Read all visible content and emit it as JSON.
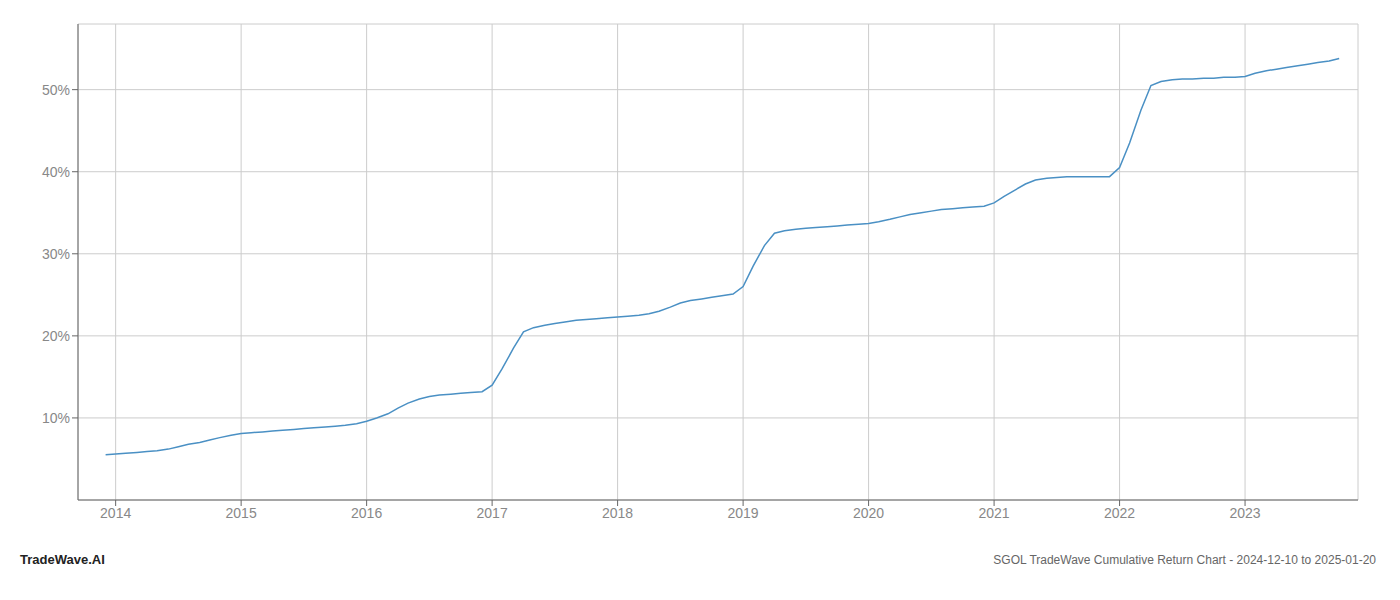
{
  "chart_data": {
    "type": "line",
    "title": "SGOL TradeWave Cumulative Return Chart - 2024-12-10 to 2025-01-20",
    "annotations": [
      "TradeWave.AI"
    ],
    "color": "#4a90c4",
    "grid": true,
    "xlim": [
      2013.7,
      2023.9
    ],
    "xticks": [
      2014,
      2015,
      2016,
      2017,
      2018,
      2019,
      2020,
      2021,
      2022,
      2023
    ],
    "ylim": [
      0,
      58
    ],
    "yticks": [
      {
        "value": 10,
        "label": "10%"
      },
      {
        "value": 20,
        "label": "20%"
      },
      {
        "value": 30,
        "label": "30%"
      },
      {
        "value": 40,
        "label": "40%"
      },
      {
        "value": 50,
        "label": "50%"
      }
    ],
    "x": [
      2013.92,
      2014.0,
      2014.08,
      2014.17,
      2014.25,
      2014.33,
      2014.42,
      2014.5,
      2014.58,
      2014.67,
      2014.75,
      2014.83,
      2014.92,
      2015.0,
      2015.08,
      2015.17,
      2015.25,
      2015.33,
      2015.42,
      2015.5,
      2015.58,
      2015.67,
      2015.75,
      2015.83,
      2015.92,
      2016.0,
      2016.08,
      2016.17,
      2016.25,
      2016.33,
      2016.42,
      2016.5,
      2016.58,
      2016.67,
      2016.75,
      2016.83,
      2016.92,
      2017.0,
      2017.08,
      2017.17,
      2017.25,
      2017.33,
      2017.42,
      2017.5,
      2017.58,
      2017.67,
      2017.75,
      2017.83,
      2017.92,
      2018.0,
      2018.08,
      2018.17,
      2018.25,
      2018.33,
      2018.42,
      2018.5,
      2018.58,
      2018.67,
      2018.75,
      2018.83,
      2018.92,
      2019.0,
      2019.08,
      2019.17,
      2019.25,
      2019.33,
      2019.42,
      2019.5,
      2019.58,
      2019.67,
      2019.75,
      2019.83,
      2019.92,
      2020.0,
      2020.08,
      2020.17,
      2020.25,
      2020.33,
      2020.42,
      2020.5,
      2020.58,
      2020.67,
      2020.75,
      2020.83,
      2020.92,
      2021.0,
      2021.08,
      2021.17,
      2021.25,
      2021.33,
      2021.42,
      2021.5,
      2021.58,
      2021.67,
      2021.75,
      2021.83,
      2021.92,
      2022.0,
      2022.08,
      2022.17,
      2022.25,
      2022.33,
      2022.42,
      2022.5,
      2022.58,
      2022.67,
      2022.75,
      2022.83,
      2022.92,
      2023.0,
      2023.08,
      2023.17,
      2023.25,
      2023.33,
      2023.42,
      2023.5,
      2023.58,
      2023.67,
      2023.75
    ],
    "values": [
      5.5,
      5.6,
      5.7,
      5.8,
      5.9,
      6.0,
      6.2,
      6.5,
      6.8,
      7.0,
      7.3,
      7.6,
      7.9,
      8.1,
      8.2,
      8.3,
      8.4,
      8.5,
      8.6,
      8.7,
      8.8,
      8.9,
      9.0,
      9.1,
      9.3,
      9.6,
      10.0,
      10.5,
      11.2,
      11.8,
      12.3,
      12.6,
      12.8,
      12.9,
      13.0,
      13.1,
      13.2,
      14.0,
      16.0,
      18.5,
      20.5,
      21.0,
      21.3,
      21.5,
      21.7,
      21.9,
      22.0,
      22.1,
      22.2,
      22.3,
      22.4,
      22.5,
      22.7,
      23.0,
      23.5,
      24.0,
      24.3,
      24.5,
      24.7,
      24.9,
      25.1,
      26.0,
      28.5,
      31.0,
      32.5,
      32.8,
      33.0,
      33.1,
      33.2,
      33.3,
      33.4,
      33.5,
      33.6,
      33.7,
      33.9,
      34.2,
      34.5,
      34.8,
      35.0,
      35.2,
      35.4,
      35.5,
      35.6,
      35.7,
      35.8,
      36.2,
      37.0,
      37.8,
      38.5,
      39.0,
      39.2,
      39.3,
      39.4,
      39.4,
      39.4,
      39.4,
      39.4,
      40.5,
      43.5,
      47.5,
      50.5,
      51.0,
      51.2,
      51.3,
      51.3,
      51.4,
      51.4,
      51.5,
      51.5,
      51.6,
      52.0,
      52.3,
      52.5,
      52.7,
      52.9,
      53.1,
      53.3,
      53.5,
      53.8
    ]
  }
}
